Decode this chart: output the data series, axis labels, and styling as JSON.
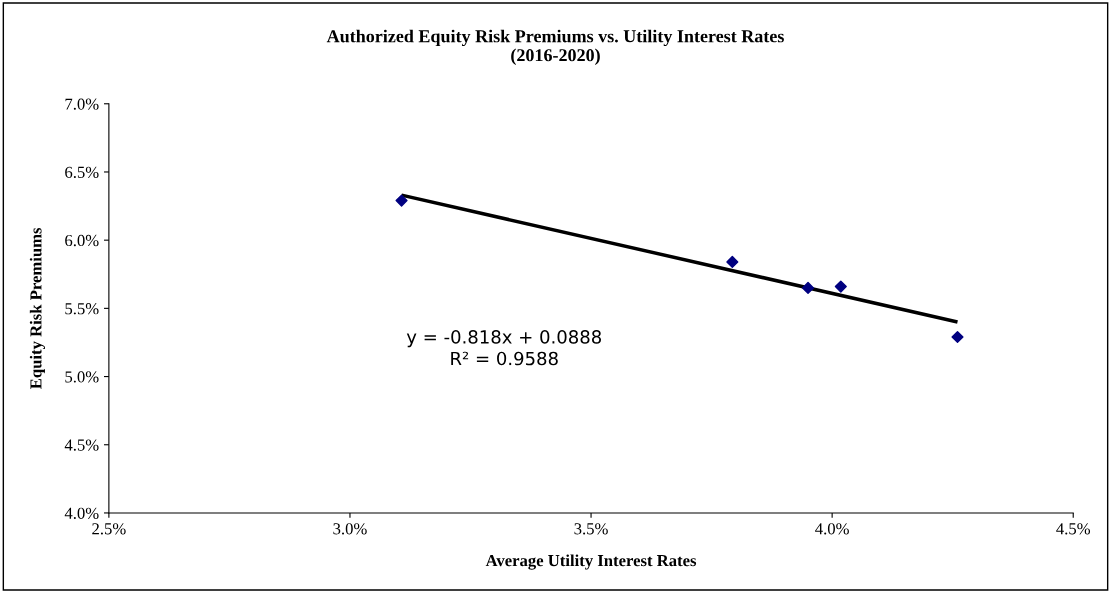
{
  "chart_data": {
    "type": "scatter",
    "title": "Authorized Equity Risk Premiums vs. Utility Interest Rates\n(2016-2020)",
    "xlabel": "Average Utility Interest Rates",
    "ylabel": "Equity Risk Premiums",
    "series": [
      {
        "color": "#000080",
        "marker": "diamond",
        "x": [
          3.107,
          3.793,
          3.95,
          4.018,
          4.26
        ],
        "values": [
          6.29,
          5.84,
          5.65,
          5.66,
          5.29
        ]
      },
      {
        "type": "line",
        "color": "#000000",
        "marker": "none",
        "line_style": "solid",
        "x": [
          3.107,
          4.26
        ],
        "values": [
          6.33,
          5.4
        ]
      }
    ],
    "xlim": [
      2.5,
      4.5
    ],
    "xticks": [
      {
        "value": 2.5,
        "label": "2.5%"
      },
      {
        "value": 3.0,
        "label": "3.0%"
      },
      {
        "value": 3.5,
        "label": "3.5%"
      },
      {
        "value": 4.0,
        "label": "4.0%"
      },
      {
        "value": 4.5,
        "label": "4.5%"
      }
    ],
    "ylim": [
      4.0,
      7.0
    ],
    "yticks": [
      {
        "value": 4.0,
        "label": "4.0%"
      },
      {
        "value": 4.5,
        "label": "4.5%"
      },
      {
        "value": 5.0,
        "label": "5.0%"
      },
      {
        "value": 5.5,
        "label": "5.5%"
      },
      {
        "value": 6.0,
        "label": "6.0%"
      },
      {
        "value": 6.5,
        "label": "6.5%"
      },
      {
        "value": 7.0,
        "label": "7.0%"
      }
    ],
    "annotations": [
      "y = -0.818x + 0.0888\nR² = 0.9588"
    ],
    "grid": false,
    "legend": false
  }
}
